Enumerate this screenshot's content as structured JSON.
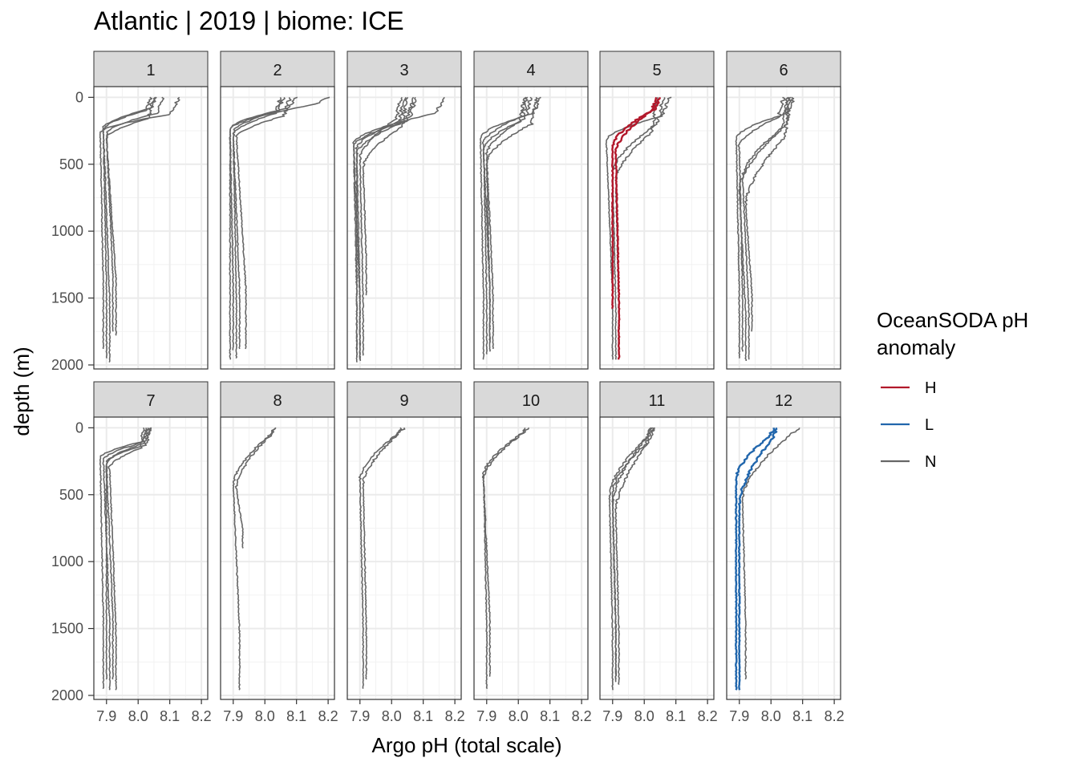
{
  "title": "Atlantic | 2019 | biome: ICE",
  "chart_data": {
    "type": "line",
    "xlabel": "Argo pH (total scale)",
    "ylabel": "depth (m)",
    "xlim": [
      7.86,
      8.22
    ],
    "ylim": [
      2030,
      -80
    ],
    "y_reversed": true,
    "x_ticks": [
      "7.9",
      "8.0",
      "8.1",
      "8.2"
    ],
    "y_ticks": [
      "0",
      "500",
      "1000",
      "1500",
      "2000"
    ],
    "grid": true,
    "legend": {
      "title_lines": [
        "OceanSODA pH",
        "anomaly"
      ],
      "position": "right",
      "entries": [
        {
          "label": "H",
          "color": "#b2182b"
        },
        {
          "label": "L",
          "color": "#2166ac"
        },
        {
          "label": "N",
          "color": "#666666"
        }
      ]
    },
    "panels": [
      {
        "label": "1",
        "profiles": [
          {
            "cls": "N",
            "x_surf": 8.13,
            "x_min": 7.88,
            "x_deep": 7.89,
            "mld": 130,
            "cline": 260,
            "bottom": 1880
          },
          {
            "cls": "N",
            "x_surf": 8.06,
            "x_min": 7.89,
            "x_deep": 7.9,
            "mld": 80,
            "cline": 230,
            "bottom": 1950
          },
          {
            "cls": "N",
            "x_surf": 8.04,
            "x_min": 7.89,
            "x_deep": 7.91,
            "mld": 100,
            "cline": 240,
            "bottom": 1980
          },
          {
            "cls": "N",
            "x_surf": 8.08,
            "x_min": 7.9,
            "x_deep": 7.92,
            "mld": 120,
            "cline": 270,
            "bottom": 1750
          },
          {
            "cls": "N",
            "x_surf": 8.05,
            "x_min": 7.9,
            "x_deep": 7.93,
            "mld": 160,
            "cline": 300,
            "bottom": 1780
          }
        ]
      },
      {
        "label": "2",
        "profiles": [
          {
            "cls": "N",
            "x_surf": 8.2,
            "x_min": 7.89,
            "x_deep": 7.89,
            "mld": 50,
            "cline": 240,
            "bottom": 1960
          },
          {
            "cls": "N",
            "x_surf": 8.1,
            "x_min": 7.89,
            "x_deep": 7.9,
            "mld": 80,
            "cline": 230,
            "bottom": 1890
          },
          {
            "cls": "N",
            "x_surf": 8.06,
            "x_min": 7.9,
            "x_deep": 7.91,
            "mld": 100,
            "cline": 260,
            "bottom": 1950
          },
          {
            "cls": "N",
            "x_surf": 8.05,
            "x_min": 7.9,
            "x_deep": 7.92,
            "mld": 120,
            "cline": 280,
            "bottom": 1880
          },
          {
            "cls": "N",
            "x_surf": 8.08,
            "x_min": 7.91,
            "x_deep": 7.94,
            "mld": 140,
            "cline": 300,
            "bottom": 1880
          }
        ]
      },
      {
        "label": "3",
        "profiles": [
          {
            "cls": "N",
            "x_surf": 8.17,
            "x_min": 7.88,
            "x_deep": 7.89,
            "mld": 120,
            "cline": 340,
            "bottom": 1940
          },
          {
            "cls": "N",
            "x_surf": 8.08,
            "x_min": 7.89,
            "x_deep": 7.89,
            "mld": 150,
            "cline": 380,
            "bottom": 1980
          },
          {
            "cls": "N",
            "x_surf": 8.04,
            "x_min": 7.89,
            "x_deep": 7.9,
            "mld": 200,
            "cline": 420,
            "bottom": 1970
          },
          {
            "cls": "N",
            "x_surf": 8.03,
            "x_min": 7.9,
            "x_deep": 7.91,
            "mld": 160,
            "cline": 460,
            "bottom": 1930
          },
          {
            "cls": "N",
            "x_surf": 8.05,
            "x_min": 7.91,
            "x_deep": 7.92,
            "mld": 220,
            "cline": 520,
            "bottom": 1480
          },
          {
            "cls": "N",
            "x_surf": 8.07,
            "x_min": 7.88,
            "x_deep": 7.9,
            "mld": 180,
            "cline": 360,
            "bottom": 1960
          }
        ]
      },
      {
        "label": "4",
        "profiles": [
          {
            "cls": "N",
            "x_surf": 8.07,
            "x_min": 7.88,
            "x_deep": 7.89,
            "mld": 120,
            "cline": 300,
            "bottom": 1960
          },
          {
            "cls": "N",
            "x_surf": 8.03,
            "x_min": 7.89,
            "x_deep": 7.9,
            "mld": 140,
            "cline": 340,
            "bottom": 1920
          },
          {
            "cls": "N",
            "x_surf": 8.04,
            "x_min": 7.89,
            "x_deep": 7.91,
            "mld": 160,
            "cline": 380,
            "bottom": 1840
          },
          {
            "cls": "N",
            "x_surf": 8.06,
            "x_min": 7.9,
            "x_deep": 7.91,
            "mld": 200,
            "cline": 480,
            "bottom": 1900
          },
          {
            "cls": "N",
            "x_surf": 8.02,
            "x_min": 7.9,
            "x_deep": 7.92,
            "mld": 180,
            "cline": 420,
            "bottom": 1880
          }
        ]
      },
      {
        "label": "5",
        "profiles": [
          {
            "cls": "N",
            "x_surf": 8.08,
            "x_min": 7.88,
            "x_deep": 7.9,
            "mld": 140,
            "cline": 320,
            "bottom": 1960
          },
          {
            "cls": "N",
            "x_surf": 8.06,
            "x_min": 7.9,
            "x_deep": 7.91,
            "mld": 200,
            "cline": 560,
            "bottom": 1960
          },
          {
            "cls": "N",
            "x_surf": 8.04,
            "x_min": 7.91,
            "x_deep": 7.92,
            "mld": 260,
            "cline": 620,
            "bottom": 1940
          },
          {
            "cls": "H",
            "x_surf": 8.05,
            "x_min": 7.9,
            "x_deep": 7.9,
            "mld": 90,
            "cline": 360,
            "bottom": 1580
          },
          {
            "cls": "H",
            "x_surf": 8.04,
            "x_min": 7.91,
            "x_deep": 7.92,
            "mld": 100,
            "cline": 400,
            "bottom": 1960
          }
        ]
      },
      {
        "label": "6",
        "profiles": [
          {
            "cls": "N",
            "x_surf": 8.06,
            "x_min": 7.89,
            "x_deep": 7.9,
            "mld": 130,
            "cline": 300,
            "bottom": 1950
          },
          {
            "cls": "N",
            "x_surf": 8.04,
            "x_min": 7.9,
            "x_deep": 7.91,
            "mld": 150,
            "cline": 360,
            "bottom": 1900
          },
          {
            "cls": "N",
            "x_surf": 8.07,
            "x_min": 7.91,
            "x_deep": 7.93,
            "mld": 200,
            "cline": 600,
            "bottom": 1960
          },
          {
            "cls": "N",
            "x_surf": 8.05,
            "x_min": 7.9,
            "x_deep": 7.92,
            "mld": 250,
            "cline": 680,
            "bottom": 1970
          },
          {
            "cls": "N",
            "x_surf": 8.06,
            "x_min": 7.92,
            "x_deep": 7.94,
            "mld": 300,
            "cline": 800,
            "bottom": 1750
          }
        ]
      },
      {
        "label": "7",
        "profiles": [
          {
            "cls": "N",
            "x_surf": 8.04,
            "x_min": 7.88,
            "x_deep": 7.89,
            "mld": 100,
            "cline": 220,
            "bottom": 1950
          },
          {
            "cls": "N",
            "x_surf": 8.03,
            "x_min": 7.89,
            "x_deep": 7.91,
            "mld": 110,
            "cline": 240,
            "bottom": 1960
          },
          {
            "cls": "N",
            "x_surf": 8.04,
            "x_min": 7.9,
            "x_deep": 7.92,
            "mld": 130,
            "cline": 260,
            "bottom": 1880
          },
          {
            "cls": "N",
            "x_surf": 8.02,
            "x_min": 7.91,
            "x_deep": 7.93,
            "mld": 150,
            "cline": 300,
            "bottom": 1960
          },
          {
            "cls": "N",
            "x_surf": 8.03,
            "x_min": 7.9,
            "x_deep": 7.9,
            "mld": 120,
            "cline": 260,
            "bottom": 1880
          }
        ]
      },
      {
        "label": "8",
        "profiles": [
          {
            "cls": "N",
            "x_surf": 8.04,
            "x_min": 7.9,
            "x_deep": 7.92,
            "mld": 40,
            "cline": 420,
            "bottom": 1960
          },
          {
            "cls": "N",
            "x_surf": 8.03,
            "x_min": 7.91,
            "x_deep": 7.93,
            "mld": 60,
            "cline": 450,
            "bottom": 900
          }
        ]
      },
      {
        "label": "9",
        "profiles": [
          {
            "cls": "N",
            "x_surf": 8.04,
            "x_min": 7.9,
            "x_deep": 7.91,
            "mld": 40,
            "cline": 380,
            "bottom": 1950
          },
          {
            "cls": "N",
            "x_surf": 8.03,
            "x_min": 7.91,
            "x_deep": 7.92,
            "mld": 60,
            "cline": 420,
            "bottom": 1880
          }
        ]
      },
      {
        "label": "10",
        "profiles": [
          {
            "cls": "N",
            "x_surf": 8.03,
            "x_min": 7.89,
            "x_deep": 7.9,
            "mld": 40,
            "cline": 350,
            "bottom": 1950
          },
          {
            "cls": "N",
            "x_surf": 8.02,
            "x_min": 7.89,
            "x_deep": 7.91,
            "mld": 60,
            "cline": 380,
            "bottom": 1860
          }
        ]
      },
      {
        "label": "11",
        "profiles": [
          {
            "cls": "N",
            "x_surf": 8.03,
            "x_min": 7.89,
            "x_deep": 7.9,
            "mld": 60,
            "cline": 500,
            "bottom": 1960
          },
          {
            "cls": "N",
            "x_surf": 8.02,
            "x_min": 7.9,
            "x_deep": 7.91,
            "mld": 80,
            "cline": 560,
            "bottom": 1900
          },
          {
            "cls": "N",
            "x_surf": 8.03,
            "x_min": 7.91,
            "x_deep": 7.92,
            "mld": 100,
            "cline": 620,
            "bottom": 1920
          },
          {
            "cls": "N",
            "x_surf": 8.02,
            "x_min": 7.9,
            "x_deep": 7.91,
            "mld": 120,
            "cline": 480,
            "bottom": 1880
          }
        ]
      },
      {
        "label": "12",
        "profiles": [
          {
            "cls": "N",
            "x_surf": 8.09,
            "x_min": 7.91,
            "x_deep": 7.92,
            "mld": 40,
            "cline": 520,
            "bottom": 1880
          },
          {
            "cls": "L",
            "x_surf": 8.01,
            "x_min": 7.89,
            "x_deep": 7.89,
            "mld": 60,
            "cline": 380,
            "bottom": 1960
          },
          {
            "cls": "L",
            "x_surf": 8.02,
            "x_min": 7.9,
            "x_deep": 7.9,
            "mld": 80,
            "cline": 560,
            "bottom": 1960
          }
        ]
      }
    ]
  }
}
